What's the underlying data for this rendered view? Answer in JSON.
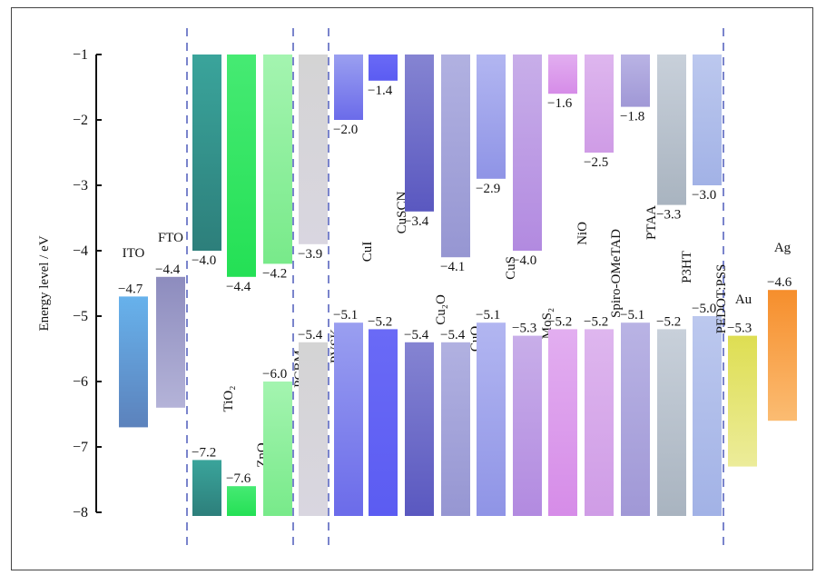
{
  "chart_data": {
    "type": "energy-level-diagram",
    "ylabel": "Energy level / eV",
    "ylim": [
      -8,
      -1
    ],
    "yticks": [
      -1,
      -2,
      -3,
      -4,
      -5,
      -6,
      -7,
      -8
    ],
    "materials": [
      {
        "name": "ITO",
        "top": -4.7,
        "bottom": -6.7,
        "top_label": "−4.7",
        "colors": [
          "#67b2ec",
          "#5c82bc"
        ]
      },
      {
        "name": "FTO",
        "top": -4.4,
        "bottom": -6.4,
        "top_label": "−4.4",
        "colors": [
          "#8d8cbe",
          "#b4b3d8"
        ]
      },
      {
        "name": "TiO₂",
        "top": -4.0,
        "bottom": -7.2,
        "top_label": "−4.0",
        "bottom_label": "−7.2",
        "colors": [
          "#3aa49b",
          "#2d7f7b"
        ]
      },
      {
        "name": "ZnO",
        "top": -4.4,
        "bottom": -7.6,
        "top_label": "−4.4",
        "bottom_label": "−7.6",
        "colors": [
          "#46ea73",
          "#24e055"
        ]
      },
      {
        "name": "PCBM",
        "top": -4.2,
        "bottom": -6.0,
        "top_label": "−4.2",
        "bottom_label": "−6.0",
        "colors": [
          "#a4f4b0",
          "#78ea8a"
        ]
      },
      {
        "name": "PVSK",
        "top": -3.9,
        "bottom": -5.4,
        "top_label": "−3.9",
        "bottom_label": "−5.4",
        "colors": [
          "#d4d4d4",
          "#d9d6e0"
        ]
      },
      {
        "name": "CuI",
        "top": -2.0,
        "bottom": -5.1,
        "top_label": "−2.0",
        "bottom_label": "−5.1",
        "colors": [
          "#9a9ff0",
          "#6b6bea"
        ]
      },
      {
        "name": "CuSCN",
        "top": -1.4,
        "bottom": -5.2,
        "top_label": "−1.4",
        "bottom_label": "−5.2",
        "colors": [
          "#6a6af6",
          "#5b5cf2"
        ]
      },
      {
        "name": "Cu₂O",
        "top": -3.4,
        "bottom": -5.4,
        "top_label": "−3.4",
        "bottom_label": "−5.4",
        "colors": [
          "#8584d2",
          "#5a58c0"
        ]
      },
      {
        "name": "CuO",
        "top": -4.1,
        "bottom": -5.4,
        "top_label": "−4.1",
        "bottom_label": "−5.4",
        "colors": [
          "#b1b1e1",
          "#9696d2"
        ]
      },
      {
        "name": "CuS",
        "top": -2.9,
        "bottom": -5.1,
        "top_label": "−2.9",
        "bottom_label": "−5.1",
        "colors": [
          "#b2b6f1",
          "#8f94e6"
        ]
      },
      {
        "name": "MoS₂",
        "top": -4.0,
        "bottom": -5.3,
        "top_label": "−4.0",
        "bottom_label": "−5.3",
        "colors": [
          "#c8aee9",
          "#b28ae0"
        ]
      },
      {
        "name": "NiO",
        "top": -1.6,
        "bottom": -5.2,
        "top_label": "−1.6",
        "bottom_label": "−5.2",
        "colors": [
          "#e2aef0",
          "#d68ce8"
        ]
      },
      {
        "name": "Spiro-OMeTAD",
        "top": -2.5,
        "bottom": -5.2,
        "top_label": "−2.5",
        "bottom_label": "−5.2",
        "colors": [
          "#deb6ee",
          "#cf9ce6"
        ]
      },
      {
        "name": "PTAA",
        "top": -1.8,
        "bottom": -5.1,
        "top_label": "−1.8",
        "bottom_label": "−5.1",
        "colors": [
          "#b9b3e4",
          "#a098d6"
        ]
      },
      {
        "name": "P3HT",
        "top": -3.3,
        "bottom": -5.2,
        "top_label": "−3.3",
        "bottom_label": "−5.2",
        "colors": [
          "#c8d0da",
          "#a9b4c0"
        ]
      },
      {
        "name": "PEDOT:PSS",
        "top": -3.0,
        "bottom": -5.0,
        "top_label": "−3.0",
        "bottom_label": "−5.0",
        "colors": [
          "#bcc8ee",
          "#a2b2e6"
        ]
      },
      {
        "name": "Au",
        "top": -5.3,
        "bottom": -7.3,
        "top_label": "−5.3",
        "colors": [
          "#dede52",
          "#ecec9a"
        ]
      },
      {
        "name": "Ag",
        "top": -4.6,
        "bottom": -6.6,
        "top_label": "−4.6",
        "colors": [
          "#f68e2c",
          "#fbbc72"
        ]
      }
    ]
  }
}
